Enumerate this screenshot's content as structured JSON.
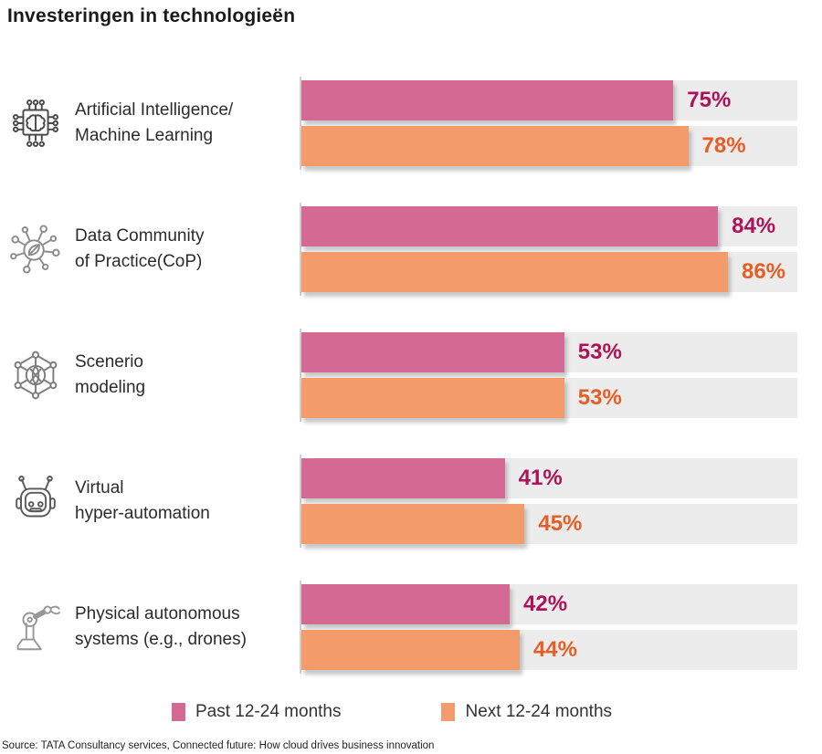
{
  "title": "Investeringen in technologieën",
  "colors": {
    "past": "#d46a94",
    "next": "#f49b6b",
    "past_text": "#ae1257",
    "next_text": "#e95d25",
    "track": "#ececec",
    "axis": "#cfcfcf"
  },
  "rows": [
    {
      "icon": "ai-chip-icon",
      "lines": [
        "Artificial Intelligence/",
        "Machine Learning"
      ],
      "past": 75,
      "next": 78,
      "past_label": "75%",
      "next_label": "78%"
    },
    {
      "icon": "data-network-icon",
      "lines": [
        "Data Community",
        "of Practice(CoP)"
      ],
      "past": 84,
      "next": 86,
      "past_label": "84%",
      "next_label": "86%"
    },
    {
      "icon": "scenario-network-icon",
      "lines": [
        "Scenerio",
        "modeling"
      ],
      "past": 53,
      "next": 53,
      "past_label": "53%",
      "next_label": "53%"
    },
    {
      "icon": "robot-head-icon",
      "lines": [
        "Virtual",
        "hyper-automation"
      ],
      "past": 41,
      "next": 45,
      "past_label": "41%",
      "next_label": "45%"
    },
    {
      "icon": "robot-arm-icon",
      "lines": [
        "Physical autonomous",
        "systems (e.g., drones)"
      ],
      "past": 42,
      "next": 44,
      "past_label": "42%",
      "next_label": "44%"
    }
  ],
  "legend": [
    {
      "label": "Past 12-24 months",
      "color": "#d46a94"
    },
    {
      "label": "Next 12-24 months",
      "color": "#f49b6b"
    }
  ],
  "source": "Source: TATA Consultancy services, Connected future: How cloud drives business innovation",
  "chart_data": {
    "type": "bar",
    "orientation": "horizontal",
    "title": "Investeringen in technologieën",
    "categories": [
      "Artificial Intelligence/Machine Learning",
      "Data Community of Practice(CoP)",
      "Scenerio modeling",
      "Virtual hyper-automation",
      "Physical autonomous systems (e.g., drones)"
    ],
    "series": [
      {
        "name": "Past 12-24 months",
        "color": "#d46a94",
        "values": [
          75,
          84,
          53,
          41,
          42
        ]
      },
      {
        "name": "Next 12-24 months",
        "color": "#f49b6b",
        "values": [
          78,
          86,
          53,
          45,
          44
        ]
      }
    ],
    "xlim": [
      0,
      100
    ],
    "value_suffix": "%",
    "grid": false,
    "legend_position": "bottom"
  }
}
